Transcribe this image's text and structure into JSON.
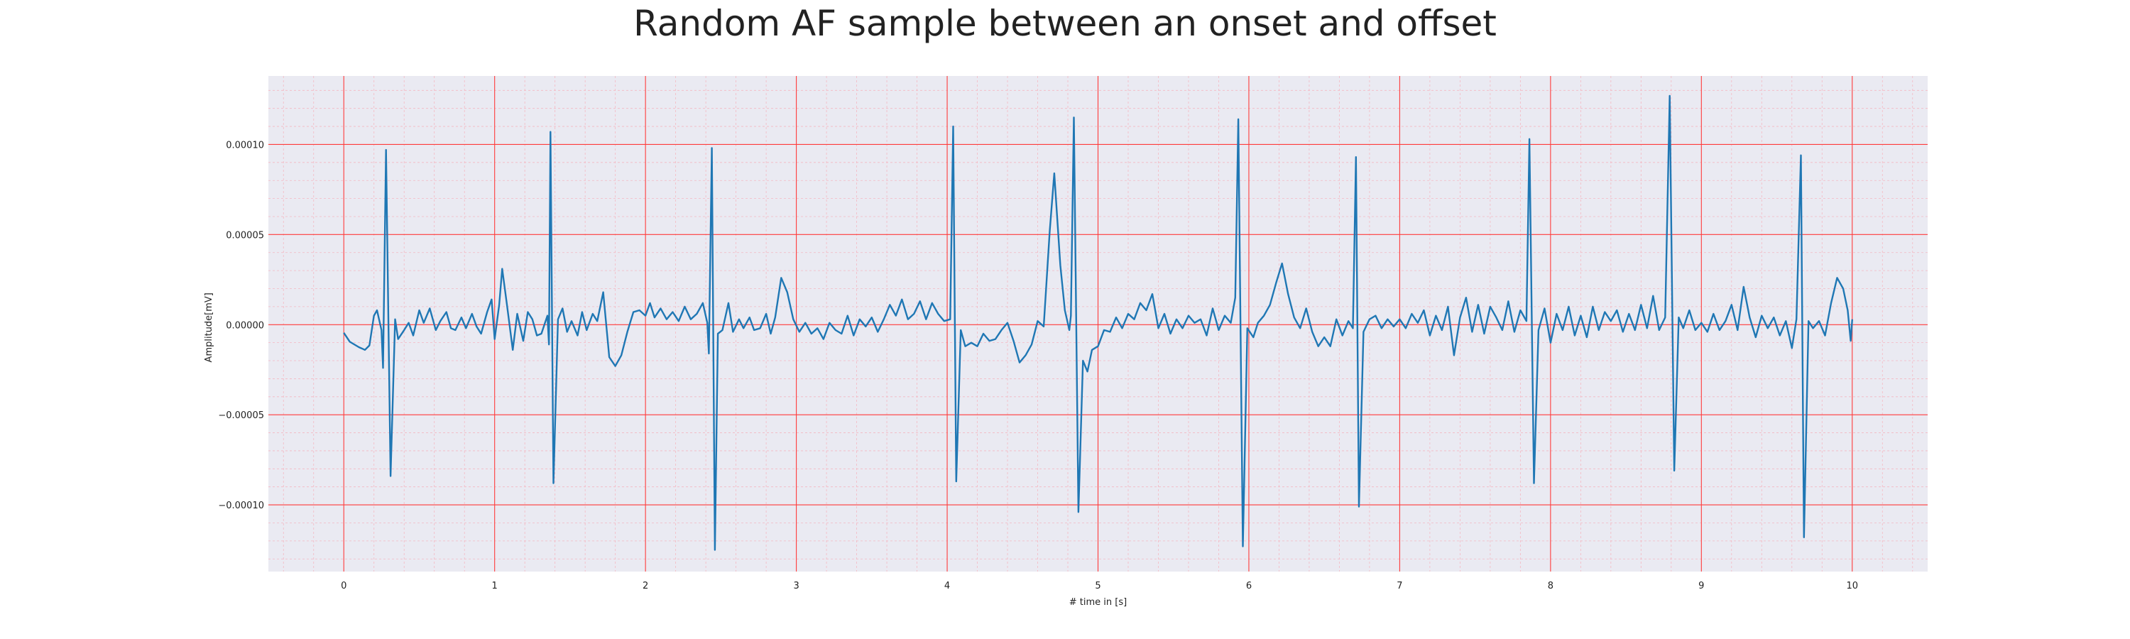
{
  "chart_data": {
    "type": "line",
    "title": "Random AF sample between an onset and offset",
    "xlabel": "# time in [s]",
    "ylabel": "Amplitude[mV]",
    "xlim": [
      -0.5,
      10.5
    ],
    "ylim": [
      -0.000137,
      0.000138
    ],
    "x_ticks": [
      0,
      1,
      2,
      3,
      4,
      5,
      6,
      7,
      8,
      9,
      10
    ],
    "y_ticks": [
      -0.0001,
      -5e-05,
      0.0,
      5e-05,
      0.0001
    ],
    "y_tick_labels": [
      "−0.00010",
      "−0.00005",
      "0.00000",
      "0.00005",
      "0.00010"
    ],
    "grid": "major and minor, red",
    "background": "#eaeaf2",
    "major_grid_color": "#ff3b3b",
    "minor_grid_color": "#f4b8c2",
    "line_color": "#1f77b4",
    "series": [
      {
        "sampling": "piecewise-linear points, seconds vs mV",
        "points": [
          [
            0.0,
            -4.5e-06
          ],
          [
            0.04,
            -9.5e-06
          ],
          [
            0.1,
            -1.25e-05
          ],
          [
            0.14,
            -1.4e-05
          ],
          [
            0.17,
            -1.15e-05
          ],
          [
            0.2,
            5e-06
          ],
          [
            0.22,
            8e-06
          ],
          [
            0.25,
            -3e-06
          ],
          [
            0.26,
            -2.4e-05
          ],
          [
            0.28,
            9.7e-05
          ],
          [
            0.31,
            -8.4e-05
          ],
          [
            0.34,
            3e-06
          ],
          [
            0.36,
            -8e-06
          ],
          [
            0.4,
            -3e-06
          ],
          [
            0.43,
            1e-06
          ],
          [
            0.46,
            -6e-06
          ],
          [
            0.5,
            8e-06
          ],
          [
            0.53,
            1e-06
          ],
          [
            0.57,
            9e-06
          ],
          [
            0.61,
            -3e-06
          ],
          [
            0.64,
            2e-06
          ],
          [
            0.68,
            7e-06
          ],
          [
            0.71,
            -2e-06
          ],
          [
            0.74,
            -3e-06
          ],
          [
            0.78,
            4e-06
          ],
          [
            0.81,
            -2e-06
          ],
          [
            0.85,
            6e-06
          ],
          [
            0.88,
            -1e-06
          ],
          [
            0.91,
            -5e-06
          ],
          [
            0.95,
            7e-06
          ],
          [
            0.98,
            1.4e-05
          ],
          [
            1.0,
            -8e-06
          ],
          [
            1.03,
            1.1e-05
          ],
          [
            1.05,
            3.1e-05
          ],
          [
            1.08,
            1.2e-05
          ],
          [
            1.12,
            -1.4e-05
          ],
          [
            1.15,
            6e-06
          ],
          [
            1.19,
            -9e-06
          ],
          [
            1.22,
            7e-06
          ],
          [
            1.25,
            3e-06
          ],
          [
            1.28,
            -6e-06
          ],
          [
            1.31,
            -5e-06
          ],
          [
            1.35,
            5e-06
          ],
          [
            1.36,
            -1.1e-05
          ],
          [
            1.37,
            0.000107
          ],
          [
            1.39,
            -8.8e-05
          ],
          [
            1.42,
            3e-06
          ],
          [
            1.45,
            9e-06
          ],
          [
            1.48,
            -4e-06
          ],
          [
            1.51,
            2e-06
          ],
          [
            1.55,
            -6e-06
          ],
          [
            1.58,
            7e-06
          ],
          [
            1.61,
            -3e-06
          ],
          [
            1.65,
            6e-06
          ],
          [
            1.68,
            2e-06
          ],
          [
            1.72,
            1.8e-05
          ],
          [
            1.76,
            -1.8e-05
          ],
          [
            1.8,
            -2.3e-05
          ],
          [
            1.84,
            -1.7e-05
          ],
          [
            1.88,
            -4e-06
          ],
          [
            1.92,
            7e-06
          ],
          [
            1.96,
            8e-06
          ],
          [
            2.0,
            5e-06
          ],
          [
            2.03,
            1.2e-05
          ],
          [
            2.06,
            4e-06
          ],
          [
            2.1,
            9e-06
          ],
          [
            2.14,
            3e-06
          ],
          [
            2.18,
            7e-06
          ],
          [
            2.22,
            2e-06
          ],
          [
            2.26,
            1e-05
          ],
          [
            2.3,
            3e-06
          ],
          [
            2.34,
            6e-06
          ],
          [
            2.38,
            1.2e-05
          ],
          [
            2.41,
            1e-06
          ],
          [
            2.42,
            -1.6e-05
          ],
          [
            2.44,
            9.8e-05
          ],
          [
            2.46,
            -0.000125
          ],
          [
            2.48,
            -5e-06
          ],
          [
            2.51,
            -3e-06
          ],
          [
            2.55,
            1.2e-05
          ],
          [
            2.58,
            -4e-06
          ],
          [
            2.62,
            3e-06
          ],
          [
            2.65,
            -2e-06
          ],
          [
            2.69,
            4e-06
          ],
          [
            2.72,
            -3e-06
          ],
          [
            2.76,
            -2e-06
          ],
          [
            2.8,
            6e-06
          ],
          [
            2.83,
            -5e-06
          ],
          [
            2.86,
            4e-06
          ],
          [
            2.9,
            2.6e-05
          ],
          [
            2.94,
            1.8e-05
          ],
          [
            2.98,
            3e-06
          ],
          [
            3.02,
            -4e-06
          ],
          [
            3.06,
            1e-06
          ],
          [
            3.1,
            -5e-06
          ],
          [
            3.14,
            -2e-06
          ],
          [
            3.18,
            -8e-06
          ],
          [
            3.22,
            1e-06
          ],
          [
            3.26,
            -3e-06
          ],
          [
            3.3,
            -5e-06
          ],
          [
            3.34,
            5e-06
          ],
          [
            3.38,
            -6e-06
          ],
          [
            3.42,
            3e-06
          ],
          [
            3.46,
            -1e-06
          ],
          [
            3.5,
            4e-06
          ],
          [
            3.54,
            -4e-06
          ],
          [
            3.58,
            3e-06
          ],
          [
            3.62,
            1.1e-05
          ],
          [
            3.66,
            5e-06
          ],
          [
            3.7,
            1.4e-05
          ],
          [
            3.74,
            3e-06
          ],
          [
            3.78,
            6e-06
          ],
          [
            3.82,
            1.3e-05
          ],
          [
            3.86,
            3e-06
          ],
          [
            3.9,
            1.2e-05
          ],
          [
            3.94,
            6e-06
          ],
          [
            3.98,
            2e-06
          ],
          [
            4.02,
            3e-06
          ],
          [
            4.04,
            0.00011
          ],
          [
            4.06,
            -8.7e-05
          ],
          [
            4.09,
            -3e-06
          ],
          [
            4.12,
            -1.2e-05
          ],
          [
            4.16,
            -1e-05
          ],
          [
            4.2,
            -1.2e-05
          ],
          [
            4.24,
            -5e-06
          ],
          [
            4.28,
            -9e-06
          ],
          [
            4.32,
            -8e-06
          ],
          [
            4.36,
            -3e-06
          ],
          [
            4.4,
            1e-06
          ],
          [
            4.44,
            -9e-06
          ],
          [
            4.48,
            -2.1e-05
          ],
          [
            4.52,
            -1.7e-05
          ],
          [
            4.56,
            -1.1e-05
          ],
          [
            4.6,
            2e-06
          ],
          [
            4.64,
            -1e-06
          ],
          [
            4.68,
            5.2e-05
          ],
          [
            4.71,
            8.4e-05
          ],
          [
            4.75,
            3.3e-05
          ],
          [
            4.78,
            8e-06
          ],
          [
            4.81,
            -3e-06
          ],
          [
            4.82,
            5e-06
          ],
          [
            4.84,
            0.000115
          ],
          [
            4.87,
            -0.000104
          ],
          [
            4.9,
            -2e-05
          ],
          [
            4.93,
            -2.6e-05
          ],
          [
            4.96,
            -1.4e-05
          ],
          [
            5.0,
            -1.2e-05
          ],
          [
            5.04,
            -3e-06
          ],
          [
            5.08,
            -4e-06
          ],
          [
            5.12,
            4e-06
          ],
          [
            5.16,
            -2e-06
          ],
          [
            5.2,
            6e-06
          ],
          [
            5.24,
            3e-06
          ],
          [
            5.28,
            1.2e-05
          ],
          [
            5.32,
            8e-06
          ],
          [
            5.36,
            1.7e-05
          ],
          [
            5.4,
            -2e-06
          ],
          [
            5.44,
            6e-06
          ],
          [
            5.48,
            -5e-06
          ],
          [
            5.52,
            3e-06
          ],
          [
            5.56,
            -2e-06
          ],
          [
            5.6,
            5e-06
          ],
          [
            5.64,
            1e-06
          ],
          [
            5.68,
            3e-06
          ],
          [
            5.72,
            -6e-06
          ],
          [
            5.76,
            9e-06
          ],
          [
            5.8,
            -3e-06
          ],
          [
            5.84,
            5e-06
          ],
          [
            5.88,
            1e-06
          ],
          [
            5.91,
            1.5e-05
          ],
          [
            5.93,
            0.000114
          ],
          [
            5.96,
            -0.000123
          ],
          [
            5.99,
            -2e-06
          ],
          [
            6.03,
            -7e-06
          ],
          [
            6.06,
            1e-06
          ],
          [
            6.1,
            5e-06
          ],
          [
            6.14,
            1.1e-05
          ],
          [
            6.18,
            2.3e-05
          ],
          [
            6.22,
            3.4e-05
          ],
          [
            6.26,
            1.7e-05
          ],
          [
            6.3,
            4e-06
          ],
          [
            6.34,
            -2e-06
          ],
          [
            6.38,
            9e-06
          ],
          [
            6.42,
            -4e-06
          ],
          [
            6.46,
            -1.2e-05
          ],
          [
            6.5,
            -7e-06
          ],
          [
            6.54,
            -1.2e-05
          ],
          [
            6.58,
            3e-06
          ],
          [
            6.62,
            -6e-06
          ],
          [
            6.66,
            2e-06
          ],
          [
            6.69,
            -2e-06
          ],
          [
            6.71,
            9.3e-05
          ],
          [
            6.73,
            -0.000101
          ],
          [
            6.76,
            -4e-06
          ],
          [
            6.8,
            3e-06
          ],
          [
            6.84,
            5e-06
          ],
          [
            6.88,
            -2e-06
          ],
          [
            6.92,
            3e-06
          ],
          [
            6.96,
            -1e-06
          ],
          [
            7.0,
            3e-06
          ],
          [
            7.04,
            -2e-06
          ],
          [
            7.08,
            6e-06
          ],
          [
            7.12,
            1e-06
          ],
          [
            7.16,
            8e-06
          ],
          [
            7.2,
            -6e-06
          ],
          [
            7.24,
            5e-06
          ],
          [
            7.28,
            -3e-06
          ],
          [
            7.32,
            1e-05
          ],
          [
            7.36,
            -1.7e-05
          ],
          [
            7.4,
            4e-06
          ],
          [
            7.44,
            1.5e-05
          ],
          [
            7.48,
            -4e-06
          ],
          [
            7.52,
            1.1e-05
          ],
          [
            7.56,
            -5e-06
          ],
          [
            7.6,
            1e-05
          ],
          [
            7.64,
            4e-06
          ],
          [
            7.68,
            -3e-06
          ],
          [
            7.72,
            1.3e-05
          ],
          [
            7.76,
            -4e-06
          ],
          [
            7.8,
            8e-06
          ],
          [
            7.84,
            2e-06
          ],
          [
            7.86,
            0.000103
          ],
          [
            7.89,
            -8.8e-05
          ],
          [
            7.92,
            -3e-06
          ],
          [
            7.96,
            9e-06
          ],
          [
            8.0,
            -1e-05
          ],
          [
            8.04,
            6e-06
          ],
          [
            8.08,
            -3e-06
          ],
          [
            8.12,
            1e-05
          ],
          [
            8.16,
            -6e-06
          ],
          [
            8.2,
            5e-06
          ],
          [
            8.24,
            -7e-06
          ],
          [
            8.28,
            1e-05
          ],
          [
            8.32,
            -3e-06
          ],
          [
            8.36,
            7e-06
          ],
          [
            8.4,
            2e-06
          ],
          [
            8.44,
            8e-06
          ],
          [
            8.48,
            -4e-06
          ],
          [
            8.52,
            6e-06
          ],
          [
            8.56,
            -3e-06
          ],
          [
            8.6,
            1.1e-05
          ],
          [
            8.64,
            -2e-06
          ],
          [
            8.68,
            1.6e-05
          ],
          [
            8.72,
            -3e-06
          ],
          [
            8.76,
            4e-06
          ],
          [
            8.79,
            0.000127
          ],
          [
            8.82,
            -8.1e-05
          ],
          [
            8.85,
            4e-06
          ],
          [
            8.88,
            -2e-06
          ],
          [
            8.92,
            8e-06
          ],
          [
            8.96,
            -3e-06
          ],
          [
            9.0,
            1e-06
          ],
          [
            9.04,
            -4e-06
          ],
          [
            9.08,
            6e-06
          ],
          [
            9.12,
            -3e-06
          ],
          [
            9.16,
            2e-06
          ],
          [
            9.2,
            1.1e-05
          ],
          [
            9.24,
            -3e-06
          ],
          [
            9.28,
            2.1e-05
          ],
          [
            9.32,
            4e-06
          ],
          [
            9.36,
            -7e-06
          ],
          [
            9.4,
            5e-06
          ],
          [
            9.44,
            -2e-06
          ],
          [
            9.48,
            4e-06
          ],
          [
            9.52,
            -6e-06
          ],
          [
            9.56,
            2e-06
          ],
          [
            9.6,
            -1.3e-05
          ],
          [
            9.63,
            3e-06
          ],
          [
            9.66,
            9.4e-05
          ],
          [
            9.68,
            -0.000118
          ],
          [
            9.71,
            2e-06
          ],
          [
            9.74,
            -2e-06
          ],
          [
            9.78,
            2e-06
          ],
          [
            9.82,
            -6e-06
          ],
          [
            9.86,
            1.2e-05
          ],
          [
            9.9,
            2.6e-05
          ],
          [
            9.94,
            2e-05
          ],
          [
            9.97,
            8e-06
          ],
          [
            9.99,
            -9e-06
          ],
          [
            10.0,
            3e-06
          ]
        ]
      }
    ]
  }
}
